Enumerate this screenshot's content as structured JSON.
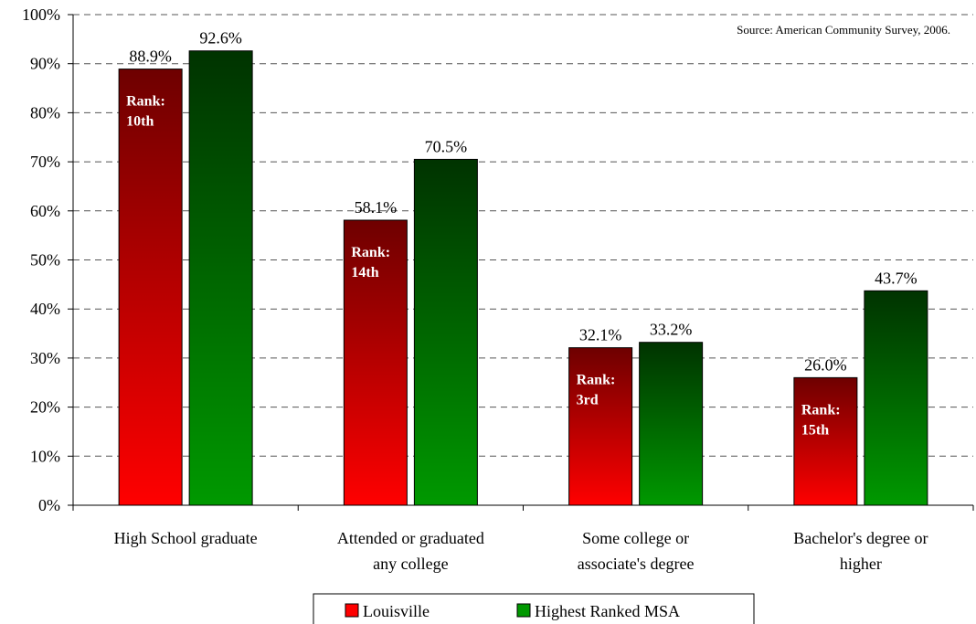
{
  "chart_data": {
    "type": "bar",
    "categories": [
      [
        "High School graduate"
      ],
      [
        "Attended or graduated",
        "any college"
      ],
      [
        "Some college or",
        "associate's degree"
      ],
      [
        "Bachelor's degree or",
        "higher"
      ]
    ],
    "series": [
      {
        "name": "Louisville",
        "values": [
          88.9,
          58.1,
          32.1,
          26.0
        ],
        "value_labels": [
          "88.9%",
          "58.1%",
          "32.1%",
          "26.0%"
        ],
        "rank_labels": [
          [
            "Rank:",
            "10th"
          ],
          [
            "Rank:",
            "14th"
          ],
          [
            "Rank:",
            "3rd"
          ],
          [
            "Rank:",
            "15th"
          ]
        ],
        "color_top": "#6e0000",
        "color_bottom": "#ff0000"
      },
      {
        "name": "Highest Ranked MSA",
        "values": [
          92.6,
          70.5,
          33.2,
          43.7
        ],
        "value_labels": [
          "92.6%",
          "70.5%",
          "33.2%",
          "43.7%"
        ],
        "color_top": "#003300",
        "color_bottom": "#009900"
      }
    ],
    "ylim": [
      0,
      100
    ],
    "ytick_step": 10,
    "ytick_suffix": "%",
    "grid": true,
    "legend_position": "bottom",
    "annotation": "Source: American Community Survey, 2006."
  }
}
